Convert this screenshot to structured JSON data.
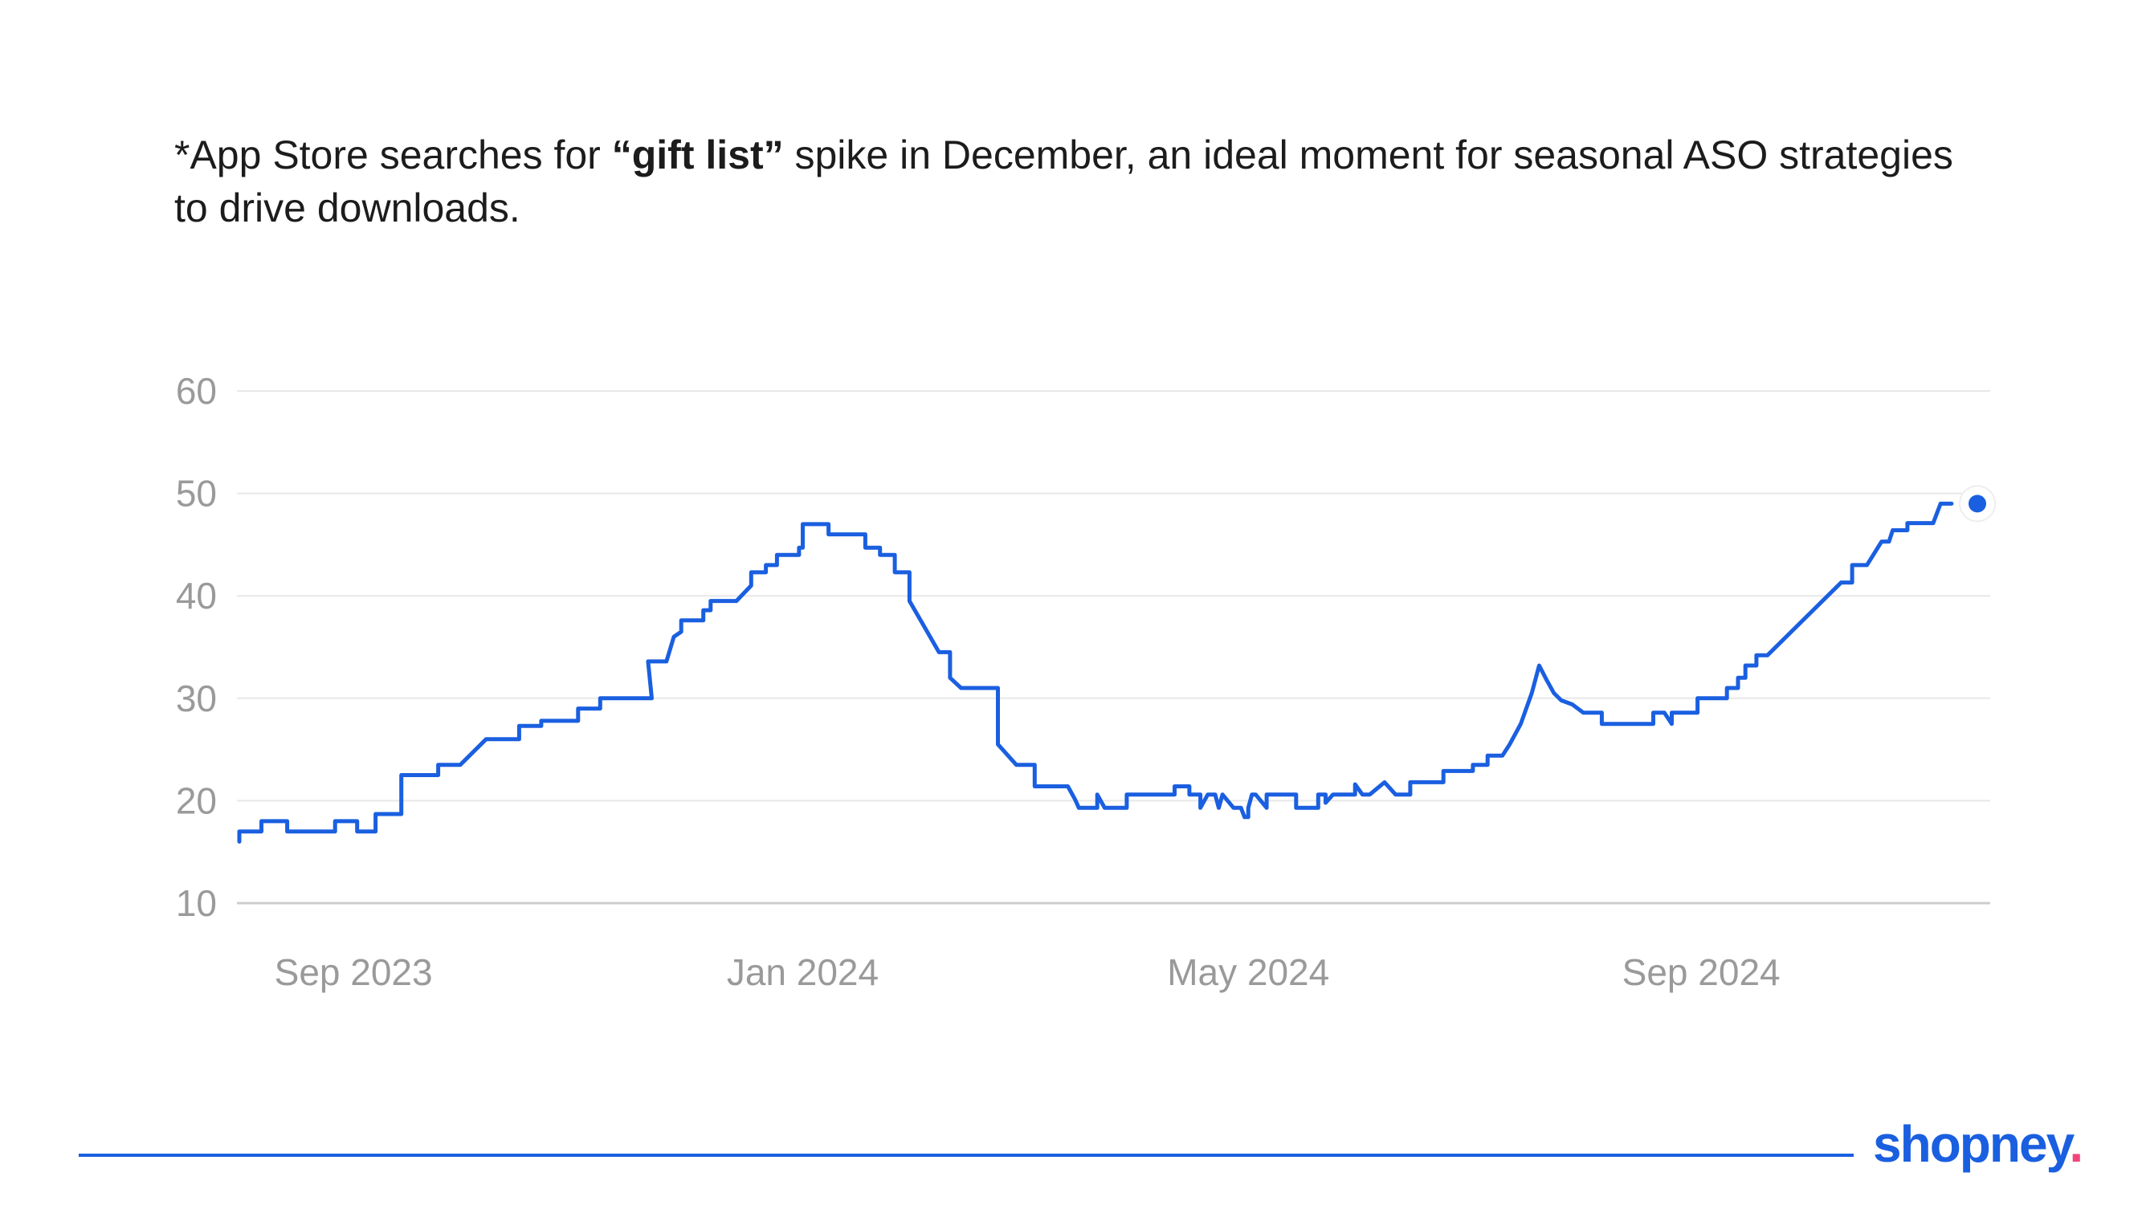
{
  "caption": {
    "prefix": "*App Store searches for ",
    "keyword": "“gift list”",
    "suffix": " spike in December, an ideal moment for seasonal ASO strategies to drive downloads."
  },
  "brand": {
    "name": "shopney",
    "dot": "."
  },
  "colors": {
    "line": "#1a5fe0",
    "grid": "#e8e8e8",
    "axis": "#cccccc",
    "tick": "#9a9a9a",
    "text": "#1c1c1c",
    "accent": "#f0457a"
  },
  "chart_data": {
    "type": "line",
    "title": "",
    "xlabel": "",
    "ylabel": "",
    "ylim": [
      10,
      60
    ],
    "yticks": [
      "10",
      "20",
      "30",
      "40",
      "50",
      "60"
    ],
    "xticks": [
      "Sep 2023",
      "Jan 2024",
      "May 2024",
      "Sep 2024"
    ],
    "xtick_positions": [
      "2023-09-01",
      "2024-01-01",
      "2024-05-01",
      "2024-09-01"
    ],
    "xlim": [
      "2023-08-01",
      "2024-11-15"
    ],
    "grid": true,
    "legend": "none",
    "series": [
      {
        "name": "",
        "points": [
          [
            "2023-08-01",
            16
          ],
          [
            "2023-08-01",
            17
          ],
          [
            "2023-08-07",
            17
          ],
          [
            "2023-08-07",
            18
          ],
          [
            "2023-08-14",
            18
          ],
          [
            "2023-08-14",
            17
          ],
          [
            "2023-08-27",
            17
          ],
          [
            "2023-08-27",
            18
          ],
          [
            "2023-09-02",
            18
          ],
          [
            "2023-09-02",
            17
          ],
          [
            "2023-09-07",
            17
          ],
          [
            "2023-09-07",
            18.7
          ],
          [
            "2023-09-14",
            18.7
          ],
          [
            "2023-09-14",
            22.5
          ],
          [
            "2023-09-24",
            22.5
          ],
          [
            "2023-09-24",
            23.5
          ],
          [
            "2023-09-30",
            23.5
          ],
          [
            "2023-10-07",
            26
          ],
          [
            "2023-10-16",
            26
          ],
          [
            "2023-10-16",
            27.3
          ],
          [
            "2023-10-22",
            27.3
          ],
          [
            "2023-10-22",
            27.8
          ],
          [
            "2023-11-01",
            27.8
          ],
          [
            "2023-11-01",
            29
          ],
          [
            "2023-11-07",
            29
          ],
          [
            "2023-11-07",
            30
          ],
          [
            "2023-11-21",
            30
          ],
          [
            "2023-11-20",
            33.6
          ],
          [
            "2023-11-25",
            33.6
          ],
          [
            "2023-11-27",
            36
          ],
          [
            "2023-11-29",
            36.5
          ],
          [
            "2023-11-29",
            37.6
          ],
          [
            "2023-12-05",
            37.6
          ],
          [
            "2023-12-05",
            38.6
          ],
          [
            "2023-12-07",
            38.6
          ],
          [
            "2023-12-07",
            39.5
          ],
          [
            "2023-12-14",
            39.5
          ],
          [
            "2023-12-18",
            41
          ],
          [
            "2023-12-18",
            42.3
          ],
          [
            "2023-12-22",
            42.3
          ],
          [
            "2023-12-22",
            43
          ],
          [
            "2023-12-25",
            43
          ],
          [
            "2023-12-25",
            44
          ],
          [
            "2023-12-31",
            44
          ],
          [
            "2023-12-31",
            44.7
          ],
          [
            "2024-01-01",
            44.7
          ],
          [
            "2024-01-01",
            47
          ],
          [
            "2024-01-08",
            47
          ],
          [
            "2024-01-08",
            46
          ],
          [
            "2024-01-18",
            46
          ],
          [
            "2024-01-18",
            44.7
          ],
          [
            "2024-01-22",
            44.7
          ],
          [
            "2024-01-22",
            44
          ],
          [
            "2024-01-26",
            44
          ],
          [
            "2024-01-26",
            42.3
          ],
          [
            "2024-01-30",
            42.3
          ],
          [
            "2024-01-30",
            39.5
          ],
          [
            "2024-02-07",
            34.5
          ],
          [
            "2024-02-10",
            34.5
          ],
          [
            "2024-02-10",
            32
          ],
          [
            "2024-02-13",
            31
          ],
          [
            "2024-02-23",
            31
          ],
          [
            "2024-02-23",
            25.5
          ],
          [
            "2024-02-28",
            23.5
          ],
          [
            "2024-03-04",
            23.5
          ],
          [
            "2024-03-04",
            21.4
          ],
          [
            "2024-03-13",
            21.4
          ],
          [
            "2024-03-15",
            20.1
          ],
          [
            "2024-03-16",
            19.3
          ],
          [
            "2024-03-21",
            19.3
          ],
          [
            "2024-03-21",
            20.6
          ],
          [
            "2024-03-23",
            19.3
          ],
          [
            "2024-03-29",
            19.3
          ],
          [
            "2024-03-29",
            20.6
          ],
          [
            "2024-04-11",
            20.6
          ],
          [
            "2024-04-11",
            21.4
          ],
          [
            "2024-04-15",
            21.4
          ],
          [
            "2024-04-15",
            20.6
          ],
          [
            "2024-04-18",
            20.6
          ],
          [
            "2024-04-18",
            19.3
          ],
          [
            "2024-04-20",
            20.6
          ],
          [
            "2024-04-22",
            20.6
          ],
          [
            "2024-04-23",
            19.3
          ],
          [
            "2024-04-24",
            20.6
          ],
          [
            "2024-04-27",
            19.3
          ],
          [
            "2024-04-29",
            19.3
          ],
          [
            "2024-04-30",
            18.4
          ],
          [
            "2024-05-01",
            18.4
          ],
          [
            "2024-05-01",
            19.3
          ],
          [
            "2024-05-02",
            20.6
          ],
          [
            "2024-05-03",
            20.6
          ],
          [
            "2024-05-06",
            19.3
          ],
          [
            "2024-05-06",
            20.6
          ],
          [
            "2024-05-14",
            20.6
          ],
          [
            "2024-05-14",
            19.3
          ],
          [
            "2024-05-20",
            19.3
          ],
          [
            "2024-05-20",
            20.6
          ],
          [
            "2024-05-22",
            20.6
          ],
          [
            "2024-05-22",
            19.8
          ],
          [
            "2024-05-24",
            20.6
          ],
          [
            "2024-05-30",
            20.6
          ],
          [
            "2024-05-30",
            21.6
          ],
          [
            "2024-06-01",
            20.6
          ],
          [
            "2024-06-03",
            20.6
          ],
          [
            "2024-06-07",
            21.8
          ],
          [
            "2024-06-10",
            20.6
          ],
          [
            "2024-06-14",
            20.6
          ],
          [
            "2024-06-14",
            21.8
          ],
          [
            "2024-06-23",
            21.8
          ],
          [
            "2024-06-23",
            22.9
          ],
          [
            "2024-07-01",
            22.9
          ],
          [
            "2024-07-01",
            23.5
          ],
          [
            "2024-07-05",
            23.5
          ],
          [
            "2024-07-05",
            24.4
          ],
          [
            "2024-07-09",
            24.4
          ],
          [
            "2024-07-11",
            25.5
          ],
          [
            "2024-07-14",
            27.5
          ],
          [
            "2024-07-17",
            30.5
          ],
          [
            "2024-07-19",
            33.2
          ],
          [
            "2024-07-21",
            31.8
          ],
          [
            "2024-07-23",
            30.5
          ],
          [
            "2024-07-25",
            29.8
          ],
          [
            "2024-07-28",
            29.4
          ],
          [
            "2024-07-31",
            28.6
          ],
          [
            "2024-08-05",
            28.6
          ],
          [
            "2024-08-05",
            27.5
          ],
          [
            "2024-08-19",
            27.5
          ],
          [
            "2024-08-19",
            28.6
          ],
          [
            "2024-08-22",
            28.6
          ],
          [
            "2024-08-24",
            27.5
          ],
          [
            "2024-08-24",
            28.6
          ],
          [
            "2024-08-31",
            28.6
          ],
          [
            "2024-08-31",
            30
          ],
          [
            "2024-09-08",
            30
          ],
          [
            "2024-09-08",
            31
          ],
          [
            "2024-09-11",
            31
          ],
          [
            "2024-09-11",
            32
          ],
          [
            "2024-09-13",
            32
          ],
          [
            "2024-09-13",
            33.2
          ],
          [
            "2024-09-16",
            33.2
          ],
          [
            "2024-09-16",
            34.2
          ],
          [
            "2024-09-19",
            34.2
          ],
          [
            "2024-10-09",
            41.3
          ],
          [
            "2024-10-12",
            41.3
          ],
          [
            "2024-10-12",
            43
          ],
          [
            "2024-10-16",
            43
          ],
          [
            "2024-10-20",
            45.3
          ],
          [
            "2024-10-22",
            45.3
          ],
          [
            "2024-10-23",
            46.4
          ],
          [
            "2024-10-27",
            46.4
          ],
          [
            "2024-10-27",
            47.1
          ],
          [
            "2024-11-03",
            47.1
          ],
          [
            "2024-11-05",
            49
          ],
          [
            "2024-11-08",
            49
          ]
        ],
        "end_marker": [
          "2024-11-15",
          49
        ]
      }
    ]
  }
}
